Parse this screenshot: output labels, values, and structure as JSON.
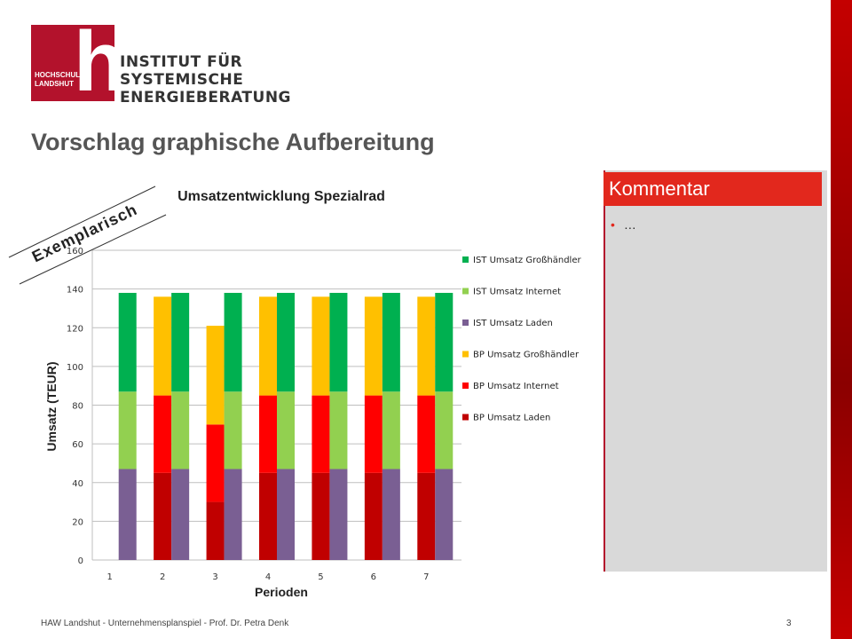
{
  "logo": {
    "school_line1": "HOCHSCHULE",
    "school_line2": "LANDSHUT",
    "institute_line1": "INSTITUT FÜR",
    "institute_line2": "SYSTEMISCHE ENERGIEBERATUNG"
  },
  "slide": {
    "title": "Vorschlag graphische Aufbereitung",
    "stamp": "Exemplarisch",
    "footer": "HAW Landshut - Unternehmensplanspiel - Prof. Dr. Petra Denk",
    "page_number": "3"
  },
  "comment": {
    "header": "Kommentar",
    "bullet": "…"
  },
  "colors": {
    "accent": "#e2281d",
    "dark_red": "#c00000",
    "red": "#ff0000",
    "yellow": "#ffc000",
    "purple": "#7a5f93",
    "light_green": "#92d050",
    "green": "#00b050"
  },
  "chart_data": {
    "type": "bar",
    "title": "Umsatzentwicklung Spezialrad",
    "xlabel": "Perioden",
    "ylabel": "Umsatz (TEUR)",
    "ylim": [
      0,
      160
    ],
    "yticks": [
      "0",
      "20",
      "40",
      "60",
      "80",
      "100",
      "120",
      "140",
      "160"
    ],
    "categories": [
      "1",
      "2",
      "3",
      "4",
      "5",
      "6",
      "7"
    ],
    "grid": true,
    "legend_position": "right",
    "series": [
      {
        "name": "BP Umsatz Laden",
        "stack": "BP",
        "color": "#c00000",
        "values": [
          null,
          45,
          30,
          45,
          45,
          45,
          45
        ]
      },
      {
        "name": "BP Umsatz Internet",
        "stack": "BP",
        "color": "#ff0000",
        "values": [
          null,
          40,
          40,
          40,
          40,
          40,
          40
        ]
      },
      {
        "name": "BP Umsatz Großhändler",
        "stack": "BP",
        "color": "#ffc000",
        "values": [
          null,
          51,
          51,
          51,
          51,
          51,
          51
        ]
      },
      {
        "name": "IST Umsatz Laden",
        "stack": "IST",
        "color": "#7a5f93",
        "values": [
          47,
          47,
          47,
          47,
          47,
          47,
          47
        ]
      },
      {
        "name": "IST Umsatz Internet",
        "stack": "IST",
        "color": "#92d050",
        "values": [
          40,
          40,
          40,
          40,
          40,
          40,
          40
        ]
      },
      {
        "name": "IST Umsatz Großhändler",
        "stack": "IST",
        "color": "#00b050",
        "values": [
          51,
          51,
          51,
          51,
          51,
          51,
          51
        ]
      }
    ]
  }
}
